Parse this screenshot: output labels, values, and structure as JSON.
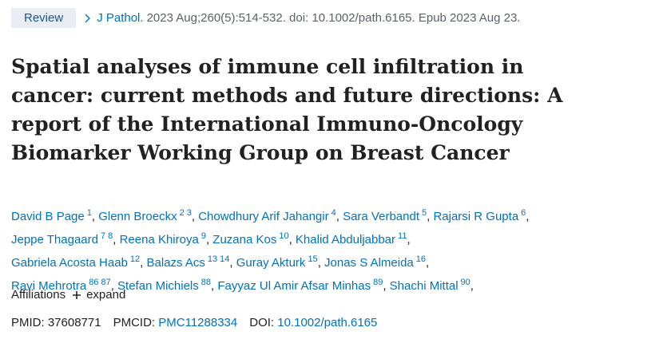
{
  "badge": "Review",
  "citation": {
    "journal": "J Pathol.",
    "details": "2023 Aug;260(5):514-532. doi: 10.1002/path.6165. Epub 2023 Aug 23."
  },
  "title": {
    "lines": [
      "Spatial analyses of immune cell infiltration in",
      "cancer: current methods and future directions: A",
      "report of the International Immuno-Oncology",
      "Biomarker Working Group on Breast Cancer"
    ]
  },
  "authors": {
    "separator": ",",
    "lines": [
      [
        {
          "name": "David B Page",
          "sups": [
            "1"
          ]
        },
        {
          "name": "Glenn Broeckx",
          "sups": [
            "2",
            "3"
          ]
        },
        {
          "name": "Chowdhury Arif Jahangir",
          "sups": [
            "4"
          ]
        },
        {
          "name": "Sara Verbandt",
          "sups": [
            "5"
          ]
        },
        {
          "name": "Rajarsi R Gupta",
          "sups": [
            "6"
          ]
        }
      ],
      [
        {
          "name": "Jeppe Thagaard",
          "sups": [
            "7",
            "8"
          ]
        },
        {
          "name": "Reena Khiroya",
          "sups": [
            "9"
          ]
        },
        {
          "name": "Zuzana Kos",
          "sups": [
            "10"
          ]
        },
        {
          "name": "Khalid Abduljabbar",
          "sups": [
            "11"
          ]
        }
      ],
      [
        {
          "name": "Gabriela Acosta Haab",
          "sups": [
            "12"
          ]
        },
        {
          "name": "Balazs Acs",
          "sups": [
            "13",
            "14"
          ]
        },
        {
          "name": "Guray Akturk",
          "sups": [
            "15"
          ]
        },
        {
          "name": "Jonas S Almeida",
          "sups": [
            "16"
          ]
        }
      ],
      [
        {
          "name": "Ravi Mehrotra",
          "sups": [
            "86",
            "87"
          ]
        },
        {
          "name": "Stefan Michiels",
          "sups": [
            "88"
          ]
        },
        {
          "name": "Fayyaz Ul Amir Afsar Minhas",
          "sups": [
            "89"
          ]
        },
        {
          "name": "Shachi Mittal",
          "sups": [
            "90"
          ]
        }
      ]
    ]
  },
  "affiliations": {
    "label": "Affiliations",
    "toggle": "expand"
  },
  "identifiers": [
    {
      "label": "PMID:",
      "value": "37608771"
    },
    {
      "label": "PMCID:",
      "value": "PMC11288334"
    },
    {
      "label": "DOI:",
      "value": "10.1002/path.6165"
    }
  ]
}
